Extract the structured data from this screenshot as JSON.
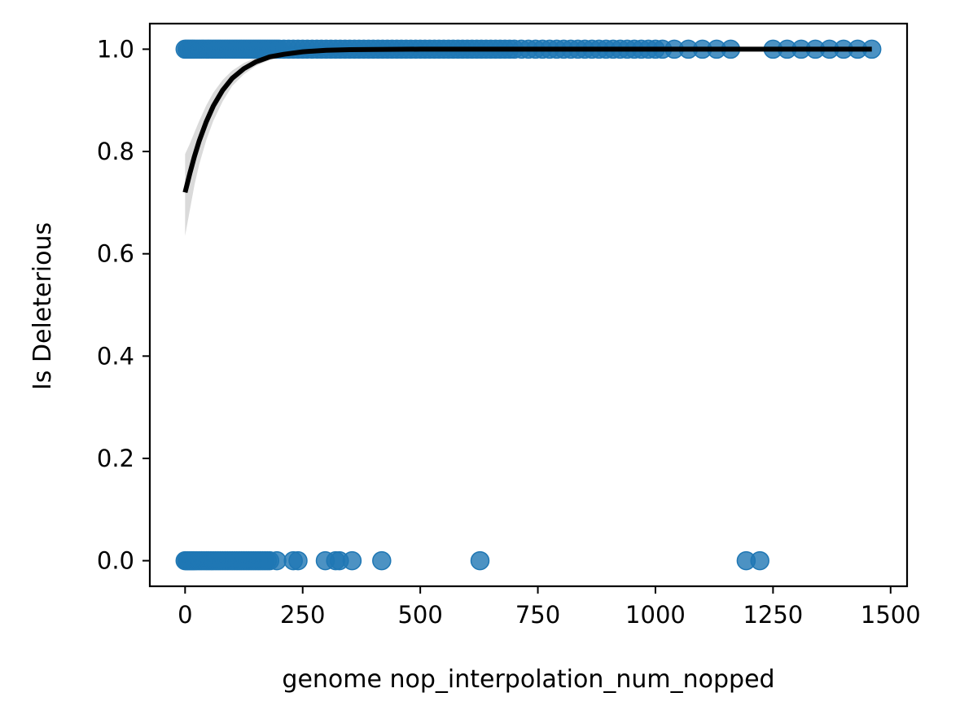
{
  "chart_data": {
    "type": "scatter",
    "xlabel": "genome nop_interpolation_num_nopped",
    "ylabel": "Is Deleterious",
    "xlim": [
      -75,
      1535
    ],
    "ylim": [
      -0.05,
      1.05
    ],
    "x_ticks": [
      0,
      250,
      500,
      750,
      1000,
      1250,
      1500
    ],
    "x_tick_labels": [
      "0",
      "250",
      "500",
      "750",
      "1000",
      "1250",
      "1500"
    ],
    "y_ticks": [
      0.0,
      0.2,
      0.4,
      0.6,
      0.8,
      1.0
    ],
    "y_tick_labels": [
      "0.0",
      "0.2",
      "0.4",
      "0.6",
      "0.8",
      "1.0"
    ],
    "grid": false,
    "point_color": "#1f77b4",
    "fit_color": "#000000",
    "band_color": "#d3d3d3",
    "points_y1_x": [
      0,
      4,
      8,
      12,
      16,
      20,
      25,
      30,
      35,
      40,
      45,
      50,
      55,
      60,
      65,
      70,
      75,
      80,
      85,
      90,
      95,
      100,
      105,
      110,
      115,
      120,
      125,
      130,
      135,
      140,
      145,
      150,
      155,
      160,
      165,
      170,
      175,
      180,
      185,
      190,
      195,
      200,
      210,
      220,
      230,
      240,
      250,
      260,
      270,
      280,
      290,
      300,
      310,
      320,
      330,
      340,
      350,
      360,
      370,
      380,
      390,
      400,
      410,
      420,
      430,
      440,
      450,
      460,
      470,
      480,
      490,
      500,
      510,
      520,
      530,
      540,
      550,
      560,
      570,
      580,
      590,
      600,
      610,
      620,
      630,
      640,
      650,
      660,
      670,
      680,
      690,
      700,
      715,
      730,
      745,
      760,
      775,
      790,
      805,
      820,
      835,
      850,
      865,
      880,
      895,
      910,
      925,
      940,
      955,
      970,
      985,
      1000,
      1015,
      1040,
      1070,
      1100,
      1130,
      1160,
      1250,
      1280,
      1310,
      1340,
      1370,
      1400,
      1430,
      1460
    ],
    "points_y0_x": [
      0,
      3,
      6,
      9,
      12,
      15,
      18,
      21,
      25,
      30,
      35,
      40,
      45,
      50,
      55,
      60,
      65,
      70,
      75,
      80,
      85,
      90,
      95,
      100,
      105,
      110,
      115,
      120,
      125,
      130,
      135,
      140,
      145,
      150,
      155,
      160,
      165,
      170,
      175,
      180,
      195,
      230,
      240,
      298,
      320,
      328,
      355,
      418,
      627,
      1193,
      1222
    ],
    "fit_x": [
      0,
      10,
      20,
      30,
      45,
      60,
      80,
      100,
      125,
      150,
      180,
      210,
      250,
      300,
      350,
      400,
      500,
      600,
      700,
      800,
      1000,
      1200,
      1460
    ],
    "fit_y": [
      0.72,
      0.757,
      0.791,
      0.821,
      0.858,
      0.889,
      0.92,
      0.943,
      0.962,
      0.975,
      0.985,
      0.99,
      0.995,
      0.998,
      0.999,
      0.9995,
      1.0,
      1.0,
      1.0,
      1.0,
      1.0,
      1.0,
      1.0
    ],
    "fit_ci_low": [
      0.635,
      0.685,
      0.735,
      0.775,
      0.822,
      0.86,
      0.898,
      0.928,
      0.951,
      0.967,
      0.979,
      0.986,
      0.992,
      0.996,
      0.998,
      0.999,
      1.0,
      1.0,
      1.0,
      1.0,
      1.0,
      1.0,
      1.0
    ],
    "fit_ci_high": [
      0.795,
      0.815,
      0.838,
      0.86,
      0.89,
      0.915,
      0.94,
      0.958,
      0.973,
      0.983,
      0.99,
      0.994,
      0.997,
      0.999,
      1.0,
      1.0,
      1.0,
      1.0,
      1.0,
      1.0,
      1.0,
      1.0,
      1.0
    ]
  }
}
